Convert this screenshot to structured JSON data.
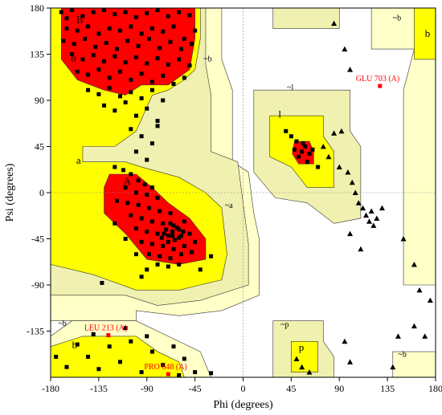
{
  "chart_data": {
    "type": "scatter",
    "title": "",
    "xlabel": "Phi (degrees)",
    "ylabel": "Psi (degrees)",
    "xlim": [
      -180,
      180
    ],
    "ylim": [
      -180,
      180
    ],
    "xticks": [
      -180,
      -135,
      -90,
      -45,
      0,
      45,
      90,
      135,
      180
    ],
    "yticks": [
      -135,
      -90,
      -45,
      0,
      45,
      90,
      135,
      180
    ],
    "grid": false,
    "colors": {
      "core": "#ff0000",
      "allowed": "#ffff00",
      "generous": "#f0f0b0",
      "outer": "#ffffc8",
      "points": "#000000",
      "outlier": "#ff0000",
      "outlier_label": "#ff0000"
    },
    "region_labels": [
      {
        "text": "B",
        "phi": -156,
        "psi": 165
      },
      {
        "text": "b",
        "phi": -161,
        "psi": 128
      },
      {
        "text": "~b",
        "phi": -37,
        "psi": 128
      },
      {
        "text": "a",
        "phi": -156,
        "psi": 28
      },
      {
        "text": "A",
        "phi": -112,
        "psi": 8
      },
      {
        "text": "~a",
        "phi": -17,
        "psi": -15
      },
      {
        "text": "~l",
        "phi": 41,
        "psi": 100
      },
      {
        "text": "l",
        "phi": 33,
        "psi": 73
      },
      {
        "text": "~b",
        "phi": 140,
        "psi": 168
      },
      {
        "text": "b",
        "phi": 170,
        "psi": 152
      },
      {
        "text": "~b",
        "phi": -173,
        "psi": -130
      },
      {
        "text": "b",
        "phi": -160,
        "psi": -152
      },
      {
        "text": "~p",
        "phi": 35,
        "psi": -131
      },
      {
        "text": "p",
        "phi": 52,
        "psi": -154
      },
      {
        "text": "~b",
        "phi": 145,
        "psi": -160
      }
    ],
    "outliers": [
      {
        "label": "GLU 703 (A)",
        "phi": 128,
        "psi": 104
      },
      {
        "label": "LEU 213 (A)",
        "phi": -126,
        "psi": -139
      },
      {
        "label": "PRO 648 (A)",
        "phi": -70,
        "psi": -177
      }
    ],
    "series": [
      {
        "marker": "square",
        "values": [
          [
            -170,
            176
          ],
          [
            -165,
            170
          ],
          [
            -160,
            178
          ],
          [
            -150,
            172
          ],
          [
            -140,
            176
          ],
          [
            -130,
            178
          ],
          [
            -120,
            174
          ],
          [
            -110,
            176
          ],
          [
            -100,
            171
          ],
          [
            -90,
            175
          ],
          [
            -80,
            178
          ],
          [
            -70,
            172
          ],
          [
            -60,
            176
          ],
          [
            -50,
            173
          ],
          [
            -165,
            160
          ],
          [
            -155,
            158
          ],
          [
            -145,
            162
          ],
          [
            -135,
            155
          ],
          [
            -125,
            160
          ],
          [
            -115,
            158
          ],
          [
            -105,
            162
          ],
          [
            -95,
            155
          ],
          [
            -85,
            160
          ],
          [
            -75,
            157
          ],
          [
            -65,
            162
          ],
          [
            -55,
            150
          ],
          [
            -45,
            158
          ],
          [
            -168,
            148
          ],
          [
            -158,
            145
          ],
          [
            -148,
            150
          ],
          [
            -138,
            142
          ],
          [
            -128,
            146
          ],
          [
            -118,
            140
          ],
          [
            -108,
            148
          ],
          [
            -98,
            143
          ],
          [
            -88,
            150
          ],
          [
            -78,
            141
          ],
          [
            -68,
            147
          ],
          [
            -58,
            140
          ],
          [
            -48,
            145
          ],
          [
            -160,
            135
          ],
          [
            -150,
            130
          ],
          [
            -140,
            134
          ],
          [
            -130,
            128
          ],
          [
            -120,
            133
          ],
          [
            -110,
            127
          ],
          [
            -100,
            132
          ],
          [
            -90,
            126
          ],
          [
            -80,
            131
          ],
          [
            -70,
            125
          ],
          [
            -60,
            130
          ],
          [
            -50,
            124
          ],
          [
            -155,
            118
          ],
          [
            -145,
            115
          ],
          [
            -135,
            120
          ],
          [
            -125,
            112
          ],
          [
            -115,
            118
          ],
          [
            -105,
            110
          ],
          [
            -95,
            116
          ],
          [
            -85,
            108
          ],
          [
            -75,
            114
          ],
          [
            -65,
            106
          ],
          [
            -55,
            112
          ],
          [
            -145,
            100
          ],
          [
            -135,
            96
          ],
          [
            -125,
            102
          ],
          [
            -115,
            94
          ],
          [
            -105,
            98
          ],
          [
            -95,
            92
          ],
          [
            -85,
            100
          ],
          [
            -75,
            90
          ],
          [
            -130,
            85
          ],
          [
            -120,
            80
          ],
          [
            -110,
            88
          ],
          [
            -100,
            75
          ],
          [
            -90,
            82
          ],
          [
            -80,
            70
          ],
          [
            -105,
            62
          ],
          [
            -95,
            55
          ],
          [
            -85,
            48
          ],
          [
            -100,
            40
          ],
          [
            -90,
            32
          ],
          [
            -80,
            65
          ],
          [
            -120,
            25
          ],
          [
            -112,
            22
          ],
          [
            -105,
            18
          ],
          [
            -98,
            12
          ],
          [
            -92,
            8
          ],
          [
            -85,
            5
          ],
          [
            -110,
            5
          ],
          [
            -100,
            0
          ],
          [
            -90,
            -2
          ],
          [
            -80,
            -5
          ],
          [
            -118,
            -8
          ],
          [
            -108,
            -10
          ],
          [
            -98,
            -12
          ],
          [
            -88,
            -15
          ],
          [
            -78,
            -18
          ],
          [
            -68,
            -20
          ],
          [
            -105,
            -22
          ],
          [
            -95,
            -25
          ],
          [
            -85,
            -28
          ],
          [
            -75,
            -30
          ],
          [
            -65,
            -32
          ],
          [
            -55,
            -28
          ],
          [
            -100,
            -35
          ],
          [
            -90,
            -38
          ],
          [
            -80,
            -40
          ],
          [
            -70,
            -42
          ],
          [
            -60,
            -44
          ],
          [
            -50,
            -40
          ],
          [
            -95,
            -48
          ],
          [
            -85,
            -50
          ],
          [
            -75,
            -52
          ],
          [
            -65,
            -55
          ],
          [
            -55,
            -52
          ],
          [
            -45,
            -48
          ],
          [
            -88,
            -60
          ],
          [
            -78,
            -62
          ],
          [
            -68,
            -64
          ],
          [
            -58,
            -60
          ],
          [
            -48,
            -58
          ],
          [
            -80,
            -70
          ],
          [
            -70,
            -72
          ],
          [
            -60,
            -70
          ],
          [
            -90,
            -75
          ],
          [
            -100,
            -60
          ],
          [
            -110,
            -45
          ],
          [
            -120,
            -30
          ],
          [
            -72,
            -36
          ],
          [
            -66,
            -38
          ],
          [
            -62,
            -34
          ],
          [
            -58,
            -42
          ],
          [
            -64,
            -46
          ],
          [
            -70,
            -48
          ],
          [
            -76,
            -44
          ],
          [
            -74,
            -40
          ],
          [
            -68,
            -30
          ],
          [
            -60,
            -36
          ],
          [
            -56,
            -38
          ],
          [
            -66,
            -42
          ],
          [
            -132,
            -88
          ],
          [
            -95,
            -82
          ],
          [
            -40,
            -75
          ],
          [
            -30,
            -62
          ],
          [
            50,
            50
          ],
          [
            55,
            40
          ],
          [
            58,
            45
          ],
          [
            62,
            38
          ],
          [
            52,
            35
          ],
          [
            48,
            42
          ],
          [
            56,
            48
          ],
          [
            60,
            30
          ],
          [
            45,
            55
          ],
          [
            65,
            42
          ],
          [
            70,
            25
          ],
          [
            40,
            60
          ],
          [
            -175,
            -160
          ],
          [
            -165,
            -170
          ],
          [
            -155,
            -148
          ],
          [
            -145,
            -160
          ],
          [
            -135,
            -172
          ],
          [
            -125,
            -150
          ],
          [
            -115,
            -165
          ],
          [
            -105,
            -145
          ],
          [
            -95,
            -175
          ],
          [
            -85,
            -155
          ],
          [
            -75,
            -168
          ],
          [
            -65,
            -150
          ],
          [
            -55,
            -162
          ],
          [
            -45,
            -175
          ],
          [
            -140,
            -138
          ],
          [
            -110,
            -132
          ],
          [
            -90,
            -140
          ],
          [
            -60,
            -178
          ],
          [
            -30,
            -176
          ]
        ]
      },
      {
        "marker": "triangle",
        "values": [
          [
            85,
            165
          ],
          [
            95,
            140
          ],
          [
            100,
            120
          ],
          [
            75,
            45
          ],
          [
            80,
            35
          ],
          [
            90,
            25
          ],
          [
            98,
            20
          ],
          [
            102,
            10
          ],
          [
            105,
            0
          ],
          [
            108,
            -10
          ],
          [
            112,
            -15
          ],
          [
            115,
            -22
          ],
          [
            118,
            -28
          ],
          [
            122,
            -32
          ],
          [
            85,
            58
          ],
          [
            92,
            60
          ],
          [
            120,
            -18
          ],
          [
            125,
            -25
          ],
          [
            130,
            -15
          ],
          [
            100,
            -40
          ],
          [
            110,
            -55
          ],
          [
            160,
            -130
          ],
          [
            140,
            -170
          ],
          [
            145,
            -140
          ],
          [
            95,
            -145
          ],
          [
            100,
            -165
          ],
          [
            55,
            -170
          ],
          [
            62,
            -175
          ],
          [
            50,
            -162
          ],
          [
            150,
            -45
          ],
          [
            160,
            -70
          ],
          [
            165,
            -95
          ],
          [
            175,
            -105
          ],
          [
            170,
            -140
          ]
        ]
      }
    ]
  }
}
